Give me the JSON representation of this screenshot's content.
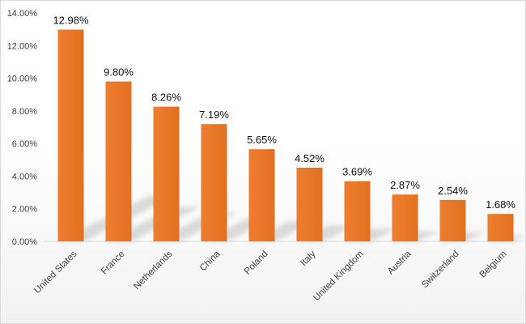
{
  "chart_data": {
    "type": "bar",
    "categories": [
      "United States",
      "France",
      "Netherlands",
      "China",
      "Poland",
      "Italy",
      "United Kingdom",
      "Austria",
      "Switzerland",
      "Belgium"
    ],
    "values": [
      12.98,
      9.8,
      8.26,
      7.19,
      5.65,
      4.52,
      3.69,
      2.87,
      2.54,
      1.68
    ],
    "data_labels": [
      "12.98%",
      "9.80%",
      "8.26%",
      "7.19%",
      "5.65%",
      "4.52%",
      "3.69%",
      "2.87%",
      "2.54%",
      "1.68%"
    ],
    "yticks": [
      0,
      2,
      4,
      6,
      8,
      10,
      12,
      14
    ],
    "ytick_labels": [
      "0.00%",
      "2.00%",
      "4.00%",
      "6.00%",
      "8.00%",
      "10.00%",
      "12.00%",
      "14.00%"
    ],
    "ylim": [
      0,
      14
    ],
    "grid": false,
    "legend": "none",
    "title": "",
    "xlabel": "",
    "ylabel": "",
    "colors": {
      "bar": "#ED7D31",
      "bar_dark": "#C55A11",
      "shadow": "#BFBFBF",
      "axis": "#D9D9D9"
    }
  }
}
